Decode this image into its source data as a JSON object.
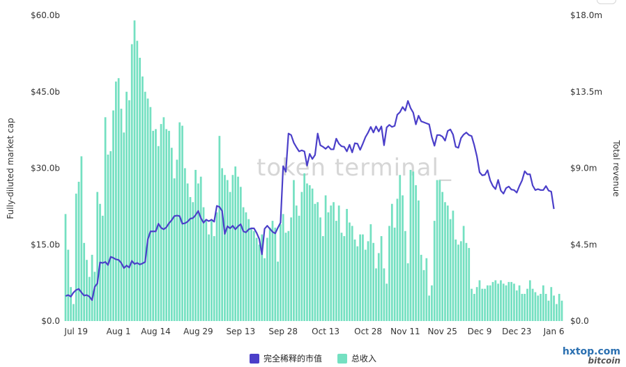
{
  "chart_data": {
    "type": "bar+line",
    "watermark": "token terminal_",
    "y_left": {
      "label": "Fully-diluted market cap",
      "ticks": [
        "$0.0",
        "$15.0b",
        "$30.0b",
        "$45.0b",
        "$60.0b"
      ],
      "min": 0,
      "max": 60,
      "unit": "b"
    },
    "y_right": {
      "label": "Total revenue",
      "ticks": [
        "$0.0",
        "$4.5m",
        "$9.0m",
        "$13.5m",
        "$18.0m"
      ],
      "min": 0,
      "max": 18,
      "unit": "m"
    },
    "x_ticks": [
      "Jul 19",
      "Aug 1",
      "Aug 14",
      "Aug 29",
      "Sep 13",
      "Sep 28",
      "Oct 13",
      "Oct 28",
      "Nov 11",
      "Nov 25",
      "Dec 9",
      "Dec 23",
      "Jan 6"
    ],
    "x_tick_index": [
      4,
      20,
      34,
      50,
      66,
      82,
      98,
      114,
      128,
      142,
      156,
      170,
      184
    ],
    "series": [
      {
        "name": "完全稀释的市值",
        "type": "line",
        "axis": "left",
        "color": "#4b3fc9",
        "values": [
          4.9,
          5.1,
          4.8,
          5.6,
          6.1,
          6.3,
          5.6,
          5.0,
          5.1,
          4.8,
          4.1,
          6.7,
          7.4,
          11.5,
          11.4,
          11.6,
          11.0,
          12.6,
          12.4,
          12.1,
          12.0,
          11.4,
          10.4,
          10.9,
          10.5,
          11.8,
          11.2,
          11.4,
          11.1,
          11.3,
          11.6,
          16.0,
          17.6,
          17.6,
          17.6,
          19.1,
          18.3,
          18.0,
          18.4,
          19.2,
          19.8,
          20.6,
          20.7,
          20.6,
          19.1,
          19.2,
          19.5,
          20.1,
          20.2,
          20.8,
          21.6,
          20.2,
          19.3,
          19.9,
          19.6,
          19.9,
          19.5,
          22.6,
          22.4,
          21.6,
          17.1,
          18.6,
          18.2,
          18.7,
          18.0,
          18.6,
          19.0,
          17.6,
          17.4,
          18.0,
          18.2,
          18.2,
          17.3,
          16.1,
          13.1,
          18.1,
          18.7,
          18.1,
          17.5,
          17.2,
          18.3,
          19.3,
          30.4,
          29.3,
          36.8,
          36.5,
          35.0,
          34.1,
          33.3,
          33.5,
          33.3,
          30.5,
          32.8,
          31.8,
          32.6,
          36.8,
          34.5,
          34.2,
          33.8,
          34.3,
          33.7,
          33.7,
          35.8,
          34.8,
          34.3,
          34.2,
          33.3,
          34.6,
          33.1,
          34.9,
          34.8,
          33.6,
          34.8,
          36.1,
          37.0,
          38.1,
          37.0,
          38.2,
          37.2,
          38.2,
          34.5,
          38.0,
          38.5,
          38.1,
          38.3,
          40.5,
          41.0,
          42.0,
          41.3,
          43.2,
          41.8,
          40.9,
          38.6,
          40.3,
          39.2,
          39.0,
          38.8,
          38.6,
          36.1,
          34.4,
          36.5,
          36.5,
          36.2,
          35.4,
          37.3,
          37.6,
          36.6,
          34.2,
          34.0,
          35.9,
          36.6,
          37.0,
          36.5,
          36.3,
          34.5,
          32.3,
          29.2,
          28.6,
          28.7,
          29.6,
          27.6,
          26.5,
          25.9,
          27.7,
          25.6,
          25.0,
          26.1,
          26.4,
          25.8,
          25.7,
          25.2,
          26.5,
          27.6,
          29.4,
          28.8,
          28.8,
          26.6,
          25.7,
          25.9,
          25.7,
          25.7,
          26.5,
          25.6,
          25.4,
          22.0
        ]
      },
      {
        "name": "总收入",
        "type": "bar",
        "axis": "right",
        "color": "#74e0c1",
        "values": [
          6.3,
          4.2,
          2.0,
          1.0,
          7.5,
          8.2,
          9.7,
          4.6,
          3.6,
          2.6,
          3.9,
          2.9,
          7.6,
          6.9,
          6.2,
          12.0,
          9.8,
          10.0,
          12.4,
          14.1,
          14.3,
          12.5,
          11.1,
          13.5,
          13.0,
          16.3,
          17.7,
          16.5,
          15.5,
          14.4,
          13.5,
          13.1,
          12.6,
          11.2,
          11.3,
          10.3,
          11.6,
          12.0,
          11.3,
          11.2,
          10.2,
          8.4,
          9.5,
          11.7,
          11.5,
          9.0,
          8.1,
          7.3,
          7.0,
          8.9,
          8.1,
          8.5,
          6.7,
          5.9,
          5.1,
          5.9,
          5.0,
          6.4,
          10.9,
          9.0,
          8.6,
          8.3,
          7.6,
          8.6,
          9.1,
          8.5,
          7.9,
          6.7,
          6.4,
          6.0,
          5.5,
          5.3,
          4.9,
          4.5,
          5.1,
          3.7,
          4.9,
          5.5,
          5.9,
          5.5,
          3.5,
          5.7,
          6.3,
          5.2,
          5.3,
          6.1,
          8.3,
          6.8,
          6.2,
          7.6,
          8.7,
          8.1,
          8.0,
          7.8,
          6.9,
          7.0,
          6.1,
          5.0,
          7.4,
          6.4,
          6.8,
          7.0,
          5.9,
          6.8,
          5.2,
          5.0,
          6.6,
          5.8,
          5.6,
          4.8,
          4.4,
          5.1,
          5.1,
          4.2,
          4.7,
          5.7,
          4.6,
          3.1,
          4.0,
          5.0,
          3.1,
          2.2,
          5.6,
          6.9,
          5.5,
          7.2,
          8.6,
          7.4,
          5.3,
          3.4,
          8.9,
          8.8,
          8.0,
          7.1,
          3.9,
          3.0,
          3.7,
          1.5,
          2.1,
          5.9,
          8.3,
          8.3,
          7.6,
          7.0,
          6.8,
          6.0,
          6.5,
          4.8,
          4.5,
          4.7,
          5.6,
          4.6,
          4.3,
          1.9,
          1.6,
          2.0,
          2.4,
          1.9,
          1.9,
          2.1,
          2.1,
          2.3,
          2.4,
          2.2,
          2.4,
          2.2,
          2.1,
          2.3,
          2.3,
          2.2,
          1.8,
          2.1,
          1.6,
          1.6,
          1.9,
          2.4,
          1.9,
          1.7,
          1.5,
          1.6,
          2.1,
          1.6,
          1.2,
          2.0,
          1.5,
          1.0,
          1.6,
          1.2
        ]
      }
    ],
    "grid": false,
    "legend_position": "bottom-center"
  },
  "corner_badge": {
    "site": "hxtop.com",
    "sub": "bitcoin"
  }
}
